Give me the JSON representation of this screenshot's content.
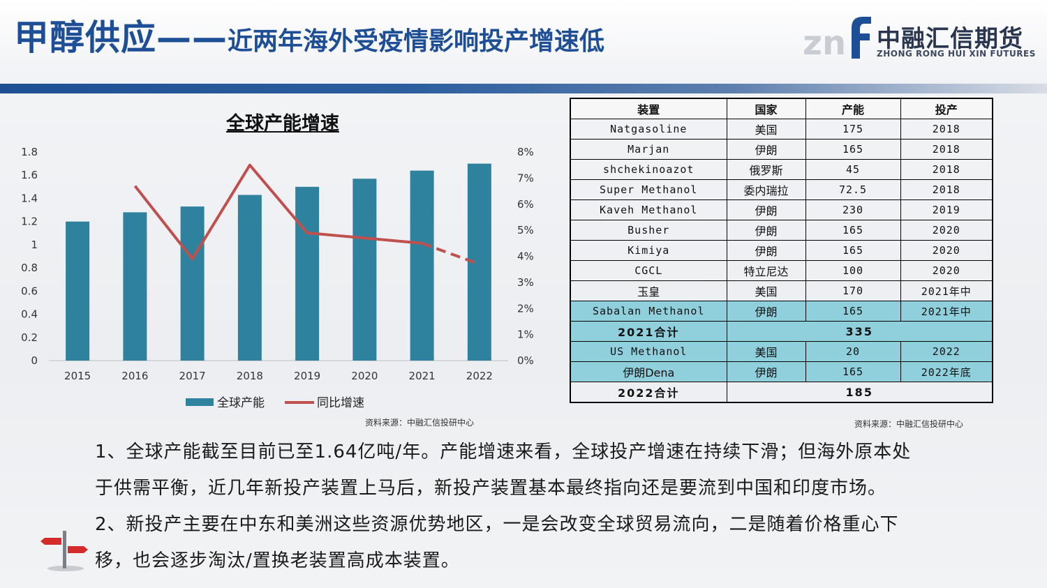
{
  "header": {
    "title_main": "甲醇供应——",
    "title_sub": "近两年海外受疫情影响投产增速低",
    "logo_cn": "中融汇信期货",
    "logo_en": "ZHONG RONG HUI XIN FUTURES"
  },
  "colors": {
    "title_blue": "#1e4f96",
    "bar_teal": "#2f829d",
    "line_red": "#c0504d",
    "highlight_row": "#8fd0dc"
  },
  "icons": [
    "signpost-icon",
    "logo-mark-icon"
  ],
  "chart_data": {
    "type": "bar",
    "title": "全球产能增速",
    "categories": [
      "2015",
      "2016",
      "2017",
      "2018",
      "2019",
      "2020",
      "2021",
      "2022"
    ],
    "series": [
      {
        "name": "全球产能",
        "type": "bar",
        "axis": "left",
        "values": [
          1.2,
          1.28,
          1.33,
          1.43,
          1.5,
          1.57,
          1.64,
          1.7
        ]
      },
      {
        "name": "同比增速",
        "type": "line",
        "axis": "right",
        "values": [
          null,
          6.7,
          3.9,
          7.5,
          4.9,
          4.7,
          4.5,
          3.7
        ],
        "dashed_from": "2021"
      }
    ],
    "ylim": [
      0,
      1.8
    ],
    "y_ticks": [
      "0",
      "0.2",
      "0.4",
      "0.6",
      "0.8",
      "1",
      "1.2",
      "1.4",
      "1.6",
      "1.8"
    ],
    "y2lim": [
      0,
      8
    ],
    "y2_ticks": [
      "0%",
      "1%",
      "2%",
      "3%",
      "4%",
      "5%",
      "6%",
      "7%",
      "8%"
    ],
    "legend_position": "bottom",
    "grid": false
  },
  "chart_source": "资料来源：中融汇信投研中心",
  "table": {
    "headers": [
      "装置",
      "国家",
      "产能",
      "投产"
    ],
    "rows": [
      {
        "name": "Natgasoline",
        "country": "美国",
        "capacity": "175",
        "start": "2018"
      },
      {
        "name": "Marjan",
        "country": "伊朗",
        "capacity": "165",
        "start": "2018"
      },
      {
        "name": "shchekinoazot",
        "country": "俄罗斯",
        "capacity": "45",
        "start": "2018"
      },
      {
        "name": "Super Methanol",
        "country": "委内瑞拉",
        "capacity": "72.5",
        "start": "2018"
      },
      {
        "name": "Kaveh Methanol",
        "country": "伊朗",
        "capacity": "230",
        "start": "2019"
      },
      {
        "name": "Busher",
        "country": "伊朗",
        "capacity": "165",
        "start": "2020"
      },
      {
        "name": "Kimiya",
        "country": "伊朗",
        "capacity": "165",
        "start": "2020"
      },
      {
        "name": "CGCL",
        "country": "特立尼达",
        "capacity": "100",
        "start": "2020"
      },
      {
        "name": "玉皇",
        "country": "美国",
        "capacity": "170",
        "start": "2021年中"
      },
      {
        "name": "Sabalan Methanol",
        "country": "伊朗",
        "capacity": "165",
        "start": "2021年中"
      }
    ],
    "total_2021": {
      "label": "2021合计",
      "value": "335"
    },
    "rows_2022": [
      {
        "name": "US Methanol",
        "country": "美国",
        "capacity": "20",
        "start": "2022"
      },
      {
        "name": "伊朗Dena",
        "country": "伊朗",
        "capacity": "165",
        "start": "2022年底"
      }
    ],
    "total_2022": {
      "label": "2022合计",
      "value": "185"
    },
    "source": "资料来源：中融汇信投研中心"
  },
  "bullets": [
    "1、全球产能截至目前已至1.64亿吨/年。产能增速来看，全球投产增速在持续下滑；但海外原本处",
    "于供需平衡，近几年新投产装置上马后，新投产装置基本最终指向还是要流到中国和印度市场。",
    "2、新投产主要在中东和美洲这些资源优势地区，一是会改变全球贸易流向，二是随着价格重心下",
    "移，也会逐步淘汰/置换老装置高成本装置。"
  ]
}
